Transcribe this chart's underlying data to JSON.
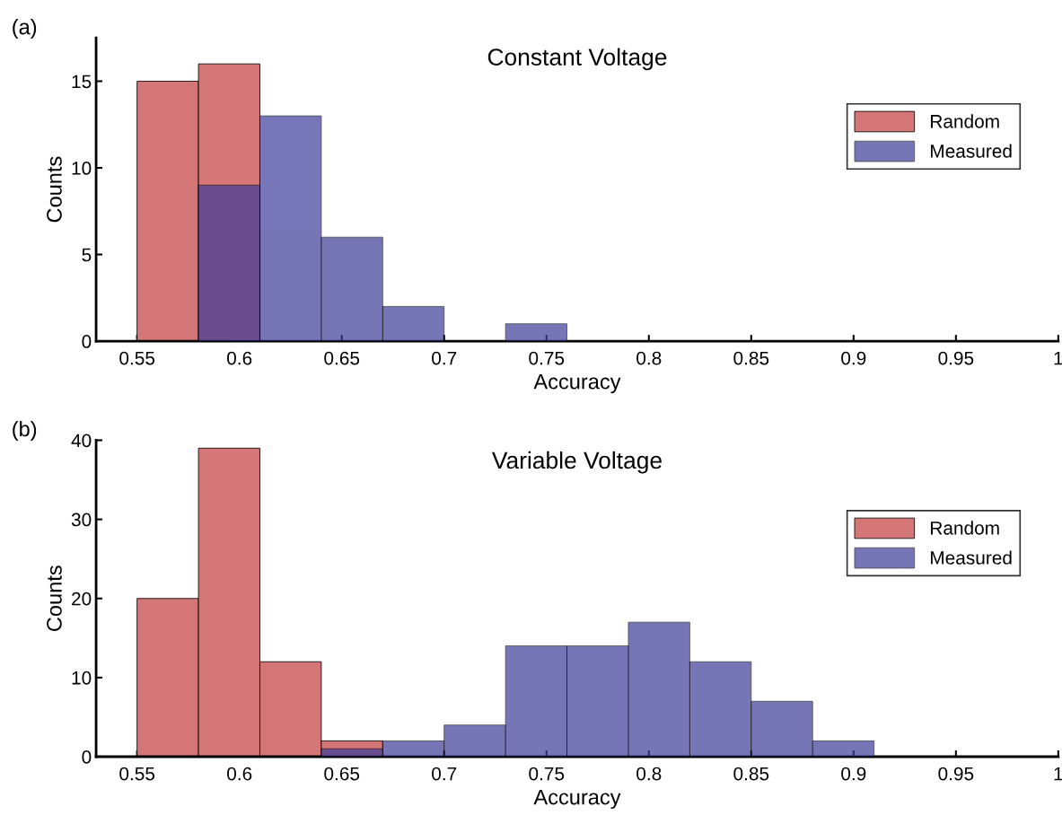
{
  "chart_data": [
    {
      "type": "histogram",
      "title": "Constant Voltage",
      "xlabel": "Accuracy",
      "ylabel": "Counts",
      "annotations": [
        "(a)"
      ],
      "bins": [
        0.55,
        0.58,
        0.61,
        0.64,
        0.67,
        0.7,
        0.73,
        0.76,
        0.79,
        0.82,
        0.85,
        0.88,
        0.91,
        0.94,
        0.97,
        1.0
      ],
      "series": [
        {
          "name": "Random",
          "color": "#d47676",
          "values": [
            15,
            16,
            0,
            0,
            0,
            0,
            0,
            0,
            0,
            0,
            0,
            0,
            0,
            0,
            0
          ]
        },
        {
          "name": "Measured",
          "color": "#7777b8",
          "values": [
            0,
            9,
            13,
            6,
            2,
            0,
            1,
            0,
            0,
            0,
            0,
            0,
            0,
            0,
            0
          ]
        }
      ],
      "xlim": [
        0.53,
        1
      ],
      "xticks": [
        0.55,
        0.6,
        0.65,
        0.7,
        0.75,
        0.8,
        0.85,
        0.9,
        0.95,
        1
      ],
      "ylim": [
        0,
        17.5
      ],
      "yticks": [
        0,
        5,
        10,
        15
      ],
      "legend": "right",
      "grid": false
    },
    {
      "type": "histogram",
      "title": "Variable Voltage",
      "xlabel": "Accuracy",
      "ylabel": "Counts",
      "annotations": [
        "(b)"
      ],
      "bins": [
        0.55,
        0.58,
        0.61,
        0.64,
        0.67,
        0.7,
        0.73,
        0.76,
        0.79,
        0.82,
        0.85,
        0.88,
        0.91,
        0.94,
        0.97,
        1.0
      ],
      "series": [
        {
          "name": "Random",
          "color": "#d47676",
          "values": [
            20,
            39,
            12,
            2,
            0,
            0,
            0,
            0,
            0,
            0,
            0,
            0,
            0,
            0,
            0
          ]
        },
        {
          "name": "Measured",
          "color": "#7777b8",
          "values": [
            0,
            0,
            0,
            1,
            2,
            4,
            14,
            14,
            17,
            12,
            7,
            2,
            0,
            0,
            0
          ]
        }
      ],
      "xlim": [
        0.53,
        1
      ],
      "xticks": [
        0.55,
        0.6,
        0.65,
        0.7,
        0.75,
        0.8,
        0.85,
        0.9,
        0.95,
        1
      ],
      "ylim": [
        0,
        40
      ],
      "yticks": [
        0,
        10,
        20,
        30,
        40
      ],
      "legend": "right",
      "grid": false
    }
  ]
}
